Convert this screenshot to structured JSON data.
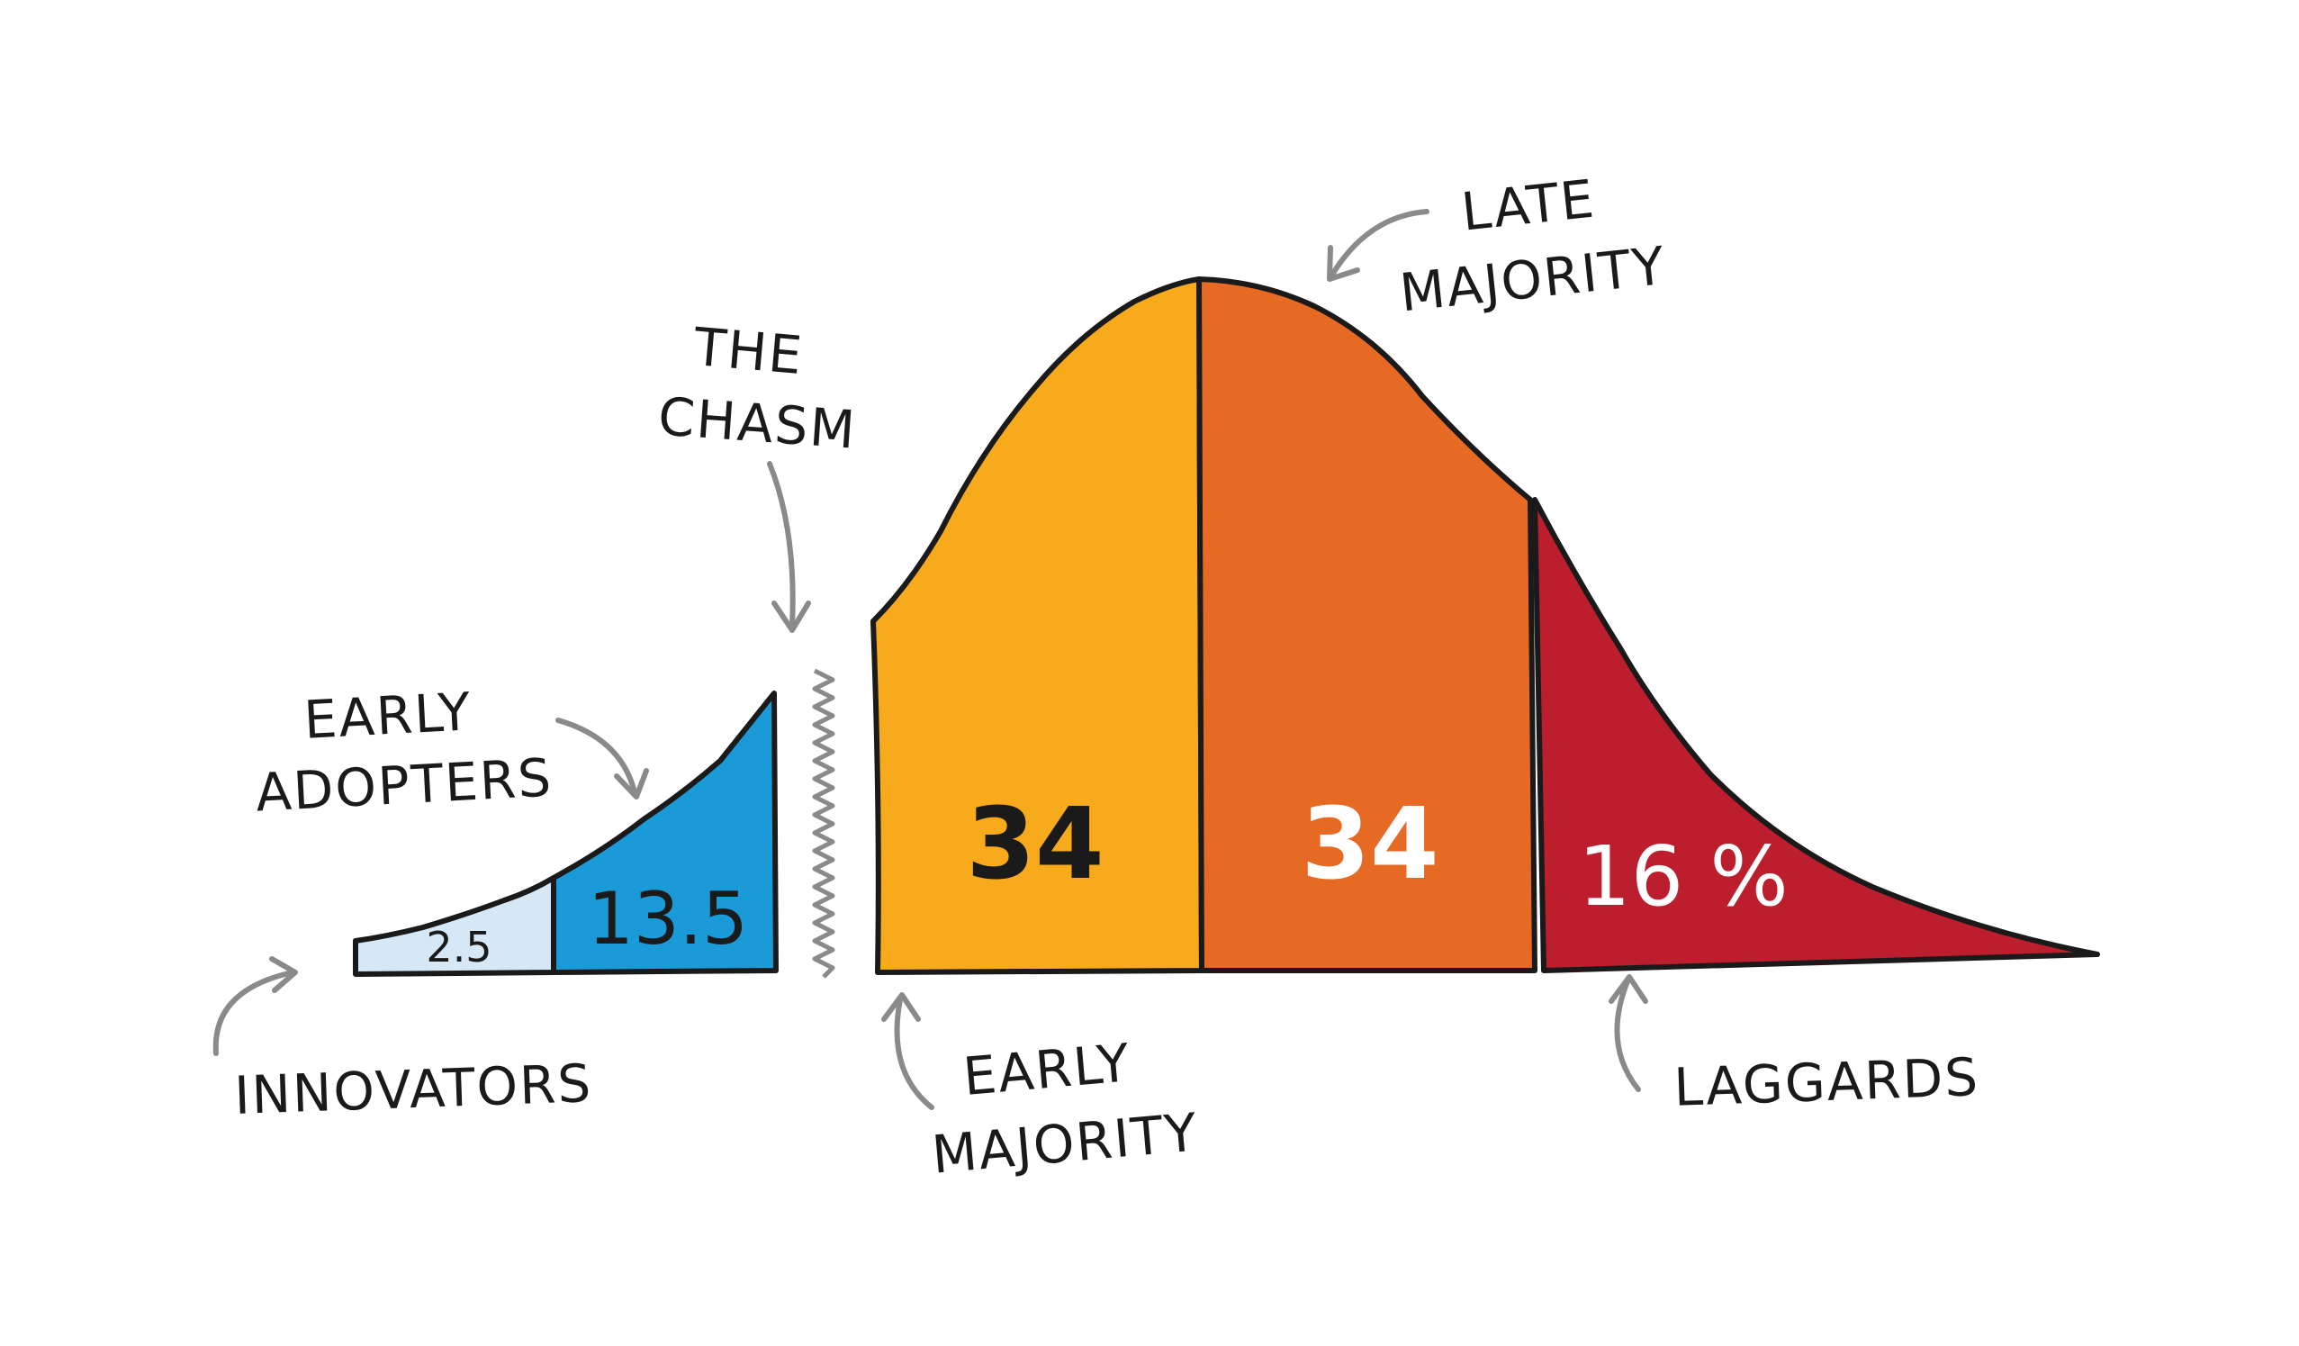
{
  "diagram": {
    "segments": [
      {
        "id": "innovators",
        "value": "2.5",
        "color": "#d6e8f6",
        "text_color": "#1a1a1a"
      },
      {
        "id": "early_adopters",
        "value": "13.5",
        "color": "#1a9ad6",
        "text_color": "#1a1a1a"
      },
      {
        "id": "early_majority",
        "value": "34",
        "color": "#f6aa1c",
        "text_color": "#1a1a1a"
      },
      {
        "id": "late_majority",
        "value": "34",
        "color": "#e76a24",
        "text_color": "#ffffff"
      },
      {
        "id": "laggards",
        "value": "16 %",
        "color": "#bd1e2e",
        "text_color": "#ffffff"
      }
    ],
    "labels": {
      "innovators": "INNOVATORS",
      "early_adopters_line1": "EARLY",
      "early_adopters_line2": "ADOPTERS",
      "chasm_line1": "THE",
      "chasm_line2": "CHASM",
      "early_majority_line1": "EARLY",
      "early_majority_line2": "MAJORITY",
      "late_majority_line1": "LATE",
      "late_majority_line2": "MAJORITY",
      "laggards": "LAGGARDS"
    },
    "colors": {
      "outline": "#1a1a1a",
      "arrow": "#8a8a8a",
      "chasm_zigzag": "#8a8a8a"
    }
  }
}
